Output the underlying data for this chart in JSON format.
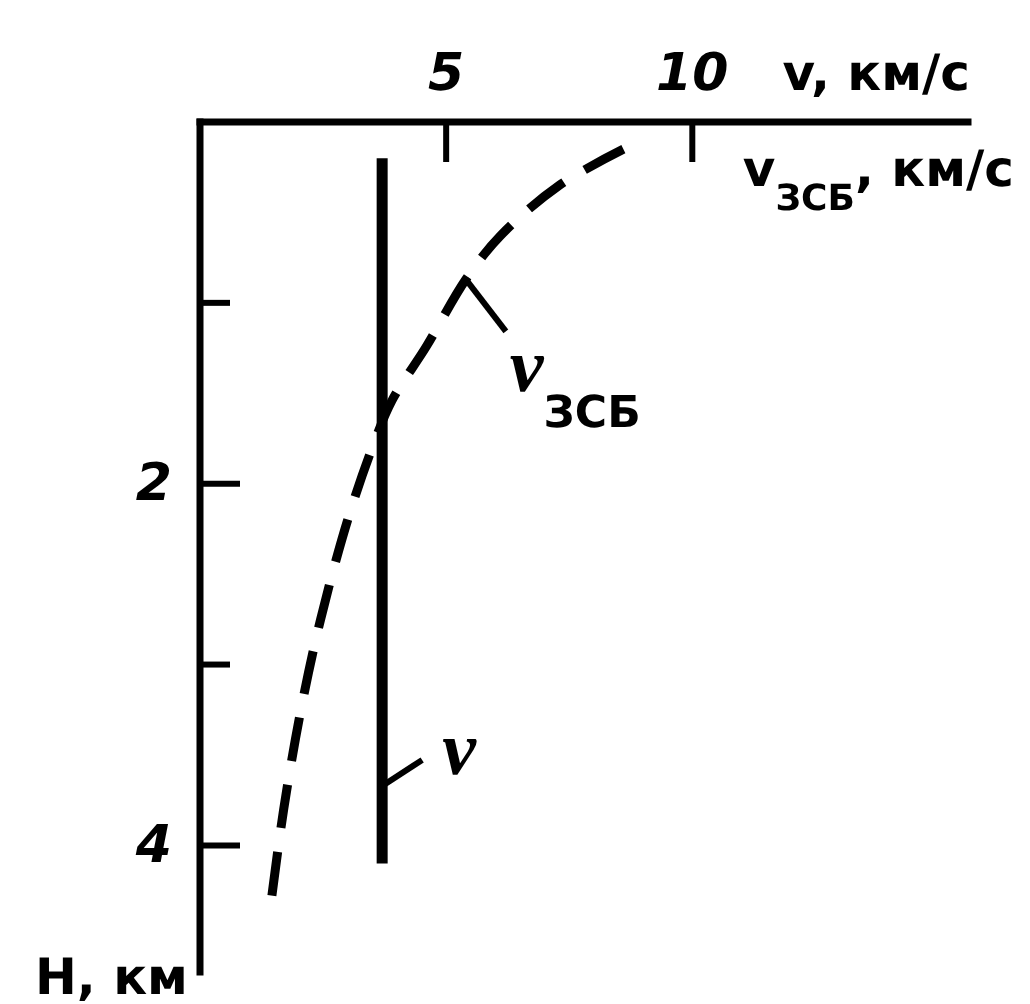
{
  "chart_data": {
    "type": "line",
    "xlabel": "v, км/с",
    "ylabel": "H, км",
    "annotations": [
      "v$_{ЗСБ}$, км/с"
    ],
    "xlim": [
      0,
      15.6
    ],
    "xticks": [
      5,
      10
    ],
    "ylim": [
      4.7,
      0
    ],
    "yticks": [
      {
        "value": 1,
        "label": null
      },
      2,
      {
        "value": 3,
        "label": null
      },
      4
    ],
    "series": [
      {
        "name": "v",
        "color": "#000000",
        "line_style": "solid",
        "x": [
          3.7,
          3.7
        ],
        "values": [
          0.2,
          4.1
        ]
      },
      {
        "name": "v$_{ЗСБ}$",
        "color": "#000000",
        "line_style": "dashed",
        "x": [
          8.6,
          7.3,
          6.1,
          5.4,
          4.6,
          3.9,
          3.5,
          3.0,
          2.45,
          2.05,
          1.7,
          1.45
        ],
        "values": [
          0.15,
          0.35,
          0.63,
          0.87,
          1.24,
          1.54,
          1.8,
          2.2,
          2.75,
          3.25,
          3.8,
          4.3
        ]
      }
    ]
  }
}
